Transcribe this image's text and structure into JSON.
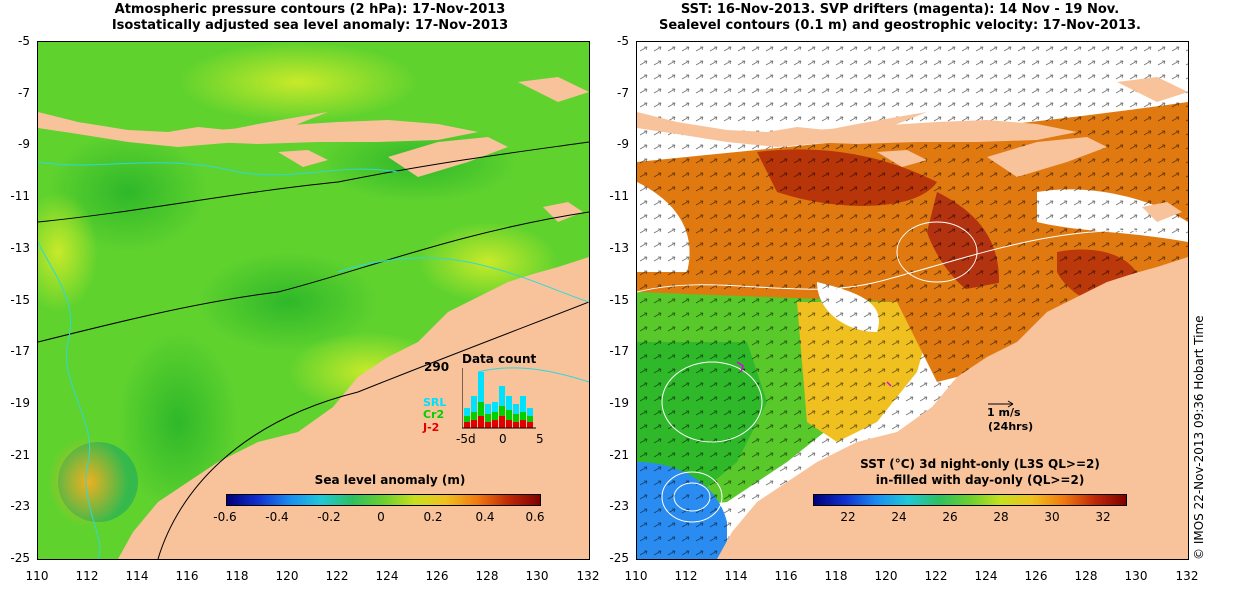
{
  "left_panel": {
    "title_line1": "Atmospheric pressure contours (2 hPa): 17-Nov-2013",
    "title_line2": "Isostatically adjusted sea level anomaly: 17-Nov-2013",
    "colorbar_title": "Sea level anomaly (m)",
    "colorbar_ticks": [
      "-0.6",
      "-0.4",
      "-0.2",
      "0",
      "0.2",
      "0.4",
      "0.6"
    ],
    "inset": {
      "title": "Data count",
      "max_label": "290",
      "legend": [
        {
          "label": "SRL",
          "color": "#00e0ff"
        },
        {
          "label": "Cr2",
          "color": "#00d000"
        },
        {
          "label": "J-2",
          "color": "#e00000"
        }
      ],
      "x_labels": [
        "-5d",
        "0",
        "5"
      ]
    }
  },
  "right_panel": {
    "title_line1": "SST: 16-Nov-2013. SVP drifters (magenta): 14 Nov - 19 Nov.",
    "title_line2": "Sealevel contours (0.1 m) and geostrophic velocity: 17-Nov-2013.",
    "velocity_scale_label": "1 m/s",
    "velocity_scale_sub": "(24hrs)",
    "colorbar_title_line1": "SST (°C)  3d night-only (L3S QL>=2)",
    "colorbar_title_line2": "in-filled with day-only (QL>=2)",
    "colorbar_ticks": [
      "22",
      "24",
      "26",
      "28",
      "30",
      "32"
    ]
  },
  "axes": {
    "y_ticks": [
      "-5",
      "-7",
      "-9",
      "-11",
      "-13",
      "-15",
      "-17",
      "-19",
      "-21",
      "-23",
      "-25"
    ],
    "x_ticks": [
      "110",
      "112",
      "114",
      "116",
      "118",
      "120",
      "122",
      "124",
      "126",
      "128",
      "130",
      "132"
    ]
  },
  "credit": "© IMOS 22-Nov-2013 09:36 Hobart Time",
  "colors": {
    "land": "#f8c29b",
    "ocean_green": "#4ccc2c",
    "ocean_light": "#9ae23a",
    "sst_orange": "#e07a10",
    "sst_red": "#b02808",
    "sst_blue": "#2a8cf0"
  }
}
